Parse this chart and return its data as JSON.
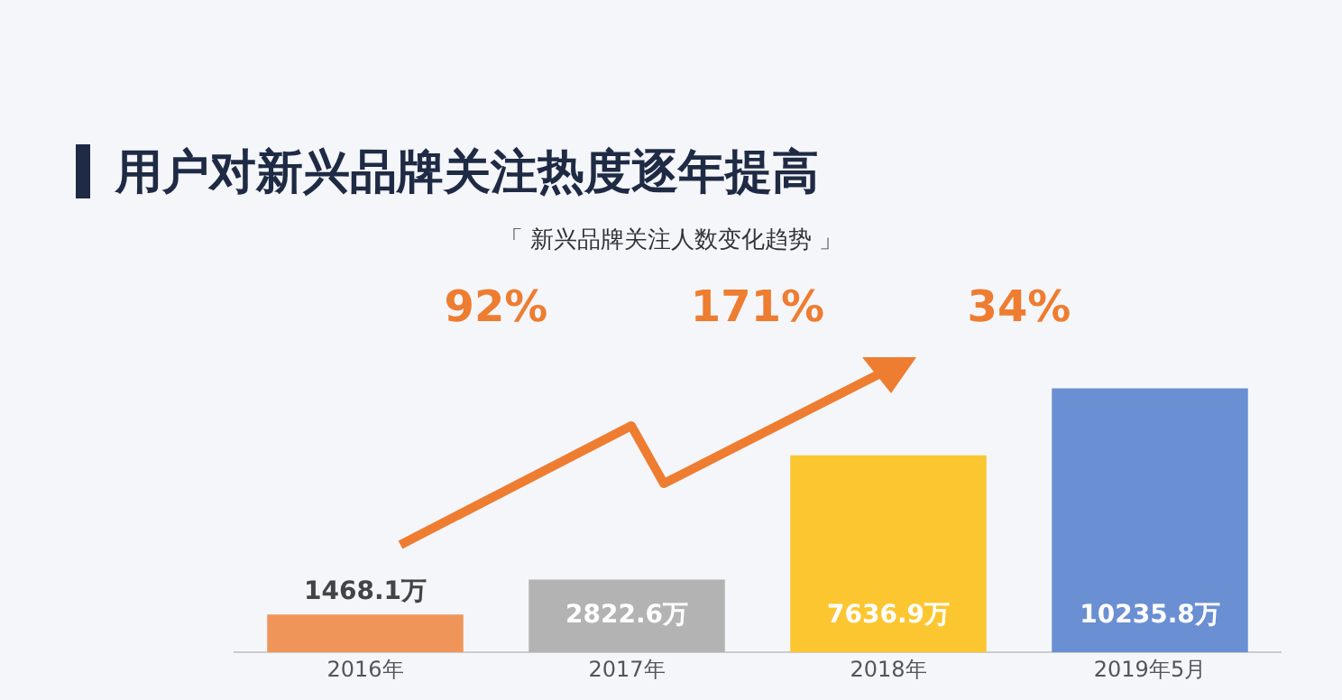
{
  "chart_data": {
    "type": "bar",
    "title": "用户对新兴品牌关注热度逐年提高",
    "subtitle": "「 新兴品牌关注人数变化趋势 」",
    "categories": [
      "2016年",
      "2017年",
      "2018年",
      "2019年5月"
    ],
    "values": [
      1468.1,
      2822.6,
      7636.9,
      10235.8
    ],
    "colors": [
      "#f0955a",
      "#b3b3b3",
      "#fcc630",
      "#6a8fd2"
    ],
    "value_labels": [
      "1468.1万",
      "2822.6万",
      "7636.9万",
      "10235.8万"
    ],
    "annotations": [
      "92%",
      "171%",
      "34%"
    ],
    "legend": false,
    "grid": false
  }
}
